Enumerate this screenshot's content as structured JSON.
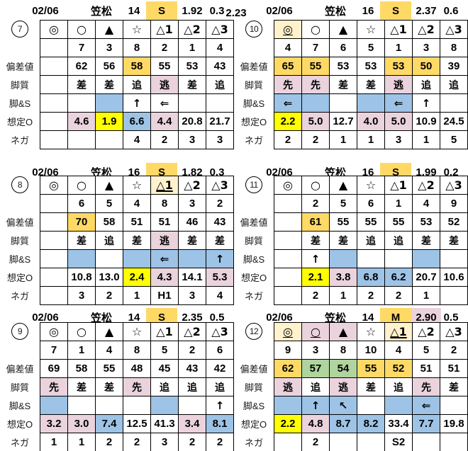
{
  "palette": {
    "y": "#FFD966",
    "ly": "#FFF2CC",
    "p": "#EAD3DD",
    "b": "#9DC3E6",
    "g": "#AFD49E",
    "Y": "#FFFF00"
  },
  "row_labels": [
    "偏差値",
    "脚質",
    "脚&S",
    "想定O",
    "ネガ"
  ],
  "blocks": [
    {
      "num": "7",
      "header": {
        "date": "02/06",
        "track": "笠松",
        "count": "14",
        "cls": "S",
        "cls_bg": "y",
        "v1": "1.92",
        "v2": "0.3",
        "v3": "2.23"
      },
      "rows": {
        "symbols": [
          "◎",
          "○",
          "▲",
          "☆",
          "△1",
          "△2",
          "△3"
        ],
        "numbers": [
          "",
          "7",
          "3",
          "8",
          "2",
          "1",
          "4"
        ],
        "hensachi": [
          "",
          "62",
          "56",
          {
            "t": "58",
            "c": "y"
          },
          "55",
          "53",
          "43"
        ],
        "kyakushitsu": [
          "",
          "差",
          "差",
          "追",
          {
            "t": "逃",
            "c": "p"
          },
          "差",
          "追"
        ],
        "ashi_s": [
          "",
          "",
          {
            "t": "",
            "c": "b"
          },
          "↑",
          "⇐",
          "",
          ""
        ],
        "sotei_o": [
          "",
          {
            "t": "4.6",
            "c": "p"
          },
          {
            "t": "1.9",
            "c": "Y"
          },
          {
            "t": "6.6",
            "c": "b"
          },
          {
            "t": "4.4",
            "c": "p"
          },
          "20.8",
          "21.7"
        ],
        "nega": [
          "",
          "",
          "",
          "4",
          "2",
          "3",
          "3"
        ]
      }
    },
    {
      "num": "10",
      "header": {
        "date": "02/06",
        "track": "笠松",
        "count": "16",
        "cls": "S",
        "cls_bg": "y",
        "v1": "2.37",
        "v2": "0.6"
      },
      "rows": {
        "symbols": [
          {
            "t": "◎",
            "c": "ly",
            "u": true
          },
          "○",
          "▲",
          "☆",
          "△1",
          "△2",
          "△3"
        ],
        "numbers": [
          "4",
          "7",
          "6",
          "5",
          "1",
          "3",
          "8"
        ],
        "hensachi": [
          {
            "t": "65",
            "c": "y"
          },
          {
            "t": "55",
            "c": "y"
          },
          "53",
          "53",
          {
            "t": "53",
            "c": "y"
          },
          {
            "t": "50",
            "c": "y"
          },
          "39"
        ],
        "kyakushitsu": [
          {
            "t": "先",
            "c": "p"
          },
          {
            "t": "先",
            "c": "p"
          },
          "差",
          "差",
          {
            "t": "逃",
            "c": "p"
          },
          "追",
          "追"
        ],
        "ashi_s": [
          {
            "t": "⇐",
            "c": "b"
          },
          {
            "t": "",
            "c": "b"
          },
          "",
          {
            "t": "",
            "c": "b"
          },
          {
            "t": "⇐",
            "c": "b"
          },
          "↑",
          ""
        ],
        "sotei_o": [
          {
            "t": "2.2",
            "c": "Y"
          },
          {
            "t": "5.0",
            "c": "p"
          },
          "12.7",
          {
            "t": "4.0",
            "c": "p"
          },
          {
            "t": "5.0",
            "c": "p"
          },
          "10.9",
          "24.5"
        ],
        "nega": [
          "2",
          "2",
          "1",
          "1",
          "3",
          "1",
          "5"
        ]
      }
    },
    {
      "num": "8",
      "header": {
        "date": "02/06",
        "track": "笠松",
        "count": "16",
        "cls": "S",
        "cls_bg": "y",
        "v1": "1.82",
        "v2": "0.3"
      },
      "rows": {
        "symbols": [
          "◎",
          "○",
          "▲",
          "☆",
          {
            "t": "△1",
            "c": "ly",
            "u": true,
            "b": true
          },
          "△2",
          "△3"
        ],
        "numbers": [
          "",
          "6",
          "5",
          "4",
          "8",
          "3",
          "2"
        ],
        "hensachi": [
          "",
          {
            "t": "70",
            "c": "y"
          },
          "58",
          "51",
          "51",
          "46",
          "43"
        ],
        "kyakushitsu": [
          "",
          "差",
          "追",
          "差",
          {
            "t": "逃",
            "c": "p"
          },
          "差",
          "差"
        ],
        "ashi_s": [
          "",
          {
            "t": "",
            "c": "b"
          },
          "",
          {
            "t": "",
            "c": "b"
          },
          {
            "t": "⇐",
            "c": "b"
          },
          {
            "t": "",
            "c": "b"
          },
          {
            "t": "↑",
            "c": "b"
          }
        ],
        "sotei_o": [
          "",
          "10.8",
          "13.0",
          {
            "t": "2.4",
            "c": "Y"
          },
          {
            "t": "4.3",
            "c": "p"
          },
          "14.1",
          {
            "t": "5.3",
            "c": "p"
          }
        ],
        "nega": [
          "",
          "3",
          "2",
          "1",
          "H1",
          "3",
          "4"
        ]
      }
    },
    {
      "num": "11",
      "header": {
        "date": "02/06",
        "track": "笠松",
        "count": "16",
        "cls": "S",
        "cls_bg": "y",
        "v1": "1.99",
        "v2": "0.2"
      },
      "rows": {
        "symbols": [
          "◎",
          "○",
          "▲",
          "☆",
          "△1",
          "△2",
          "△3"
        ],
        "numbers": [
          "",
          "2",
          "5",
          "6",
          "1",
          "4",
          "9"
        ],
        "hensachi": [
          "",
          {
            "t": "61",
            "c": "y"
          },
          "55",
          "55",
          "55",
          "53",
          "52"
        ],
        "kyakushitsu": [
          "",
          "差",
          "差",
          "追",
          "追",
          "差",
          "差"
        ],
        "ashi_s": [
          "",
          "↑",
          {
            "t": "",
            "c": "b"
          },
          "",
          "",
          {
            "t": "",
            "c": "b"
          },
          ""
        ],
        "sotei_o": [
          "",
          {
            "t": "2.1",
            "c": "Y"
          },
          {
            "t": "3.8",
            "c": "p"
          },
          {
            "t": "6.8",
            "c": "b"
          },
          {
            "t": "6.2",
            "c": "b"
          },
          "20.7",
          "10.6"
        ],
        "nega": [
          "",
          "2",
          "1",
          "2",
          "2",
          "1",
          ""
        ]
      }
    },
    {
      "num": "9",
      "header": {
        "date": "02/06",
        "track": "笠松",
        "count": "14",
        "cls": "S",
        "cls_bg": "y",
        "v1": "2.35",
        "v2": "0.5"
      },
      "rows": {
        "symbols": [
          "◎",
          "○",
          "▲",
          "☆",
          "△1",
          "△2",
          "△3"
        ],
        "numbers": [
          "7",
          "1",
          "4",
          "8",
          "5",
          "2",
          "6"
        ],
        "hensachi": [
          "69",
          "58",
          "55",
          "48",
          "45",
          "43",
          "42"
        ],
        "kyakushitsu": [
          {
            "t": "先",
            "c": "p"
          },
          "差",
          "差",
          {
            "t": "先",
            "c": "p"
          },
          "追",
          "追",
          "追"
        ],
        "ashi_s": [
          {
            "t": "",
            "c": "b"
          },
          "",
          "",
          "",
          {
            "t": "",
            "c": "b"
          },
          "",
          "↑"
        ],
        "sotei_o": [
          {
            "t": "3.2",
            "c": "p"
          },
          {
            "t": "3.0",
            "c": "p"
          },
          {
            "t": "7.4",
            "c": "b"
          },
          "12.5",
          "41.3",
          {
            "t": "3.4",
            "c": "p"
          },
          {
            "t": "8.1",
            "c": "b"
          }
        ],
        "nega": [
          "1",
          "1",
          "2",
          "2",
          "3",
          "2",
          "2"
        ]
      }
    },
    {
      "num": "12",
      "header": {
        "date": "02/06",
        "track": "笠松",
        "count": "14",
        "cls": "M",
        "cls_bg": "y",
        "v1": "2.90",
        "v1_bg": "p",
        "v2": "0.5"
      },
      "rows": {
        "symbols": [
          {
            "t": "◎",
            "c": "ly",
            "u": true
          },
          {
            "t": "○",
            "c": "p",
            "u": true
          },
          {
            "t": "▲",
            "c": "p"
          },
          "☆",
          {
            "t": "△1",
            "c": "ly",
            "u": true,
            "b": true
          },
          "△2",
          "△3"
        ],
        "numbers": [
          "9",
          "3",
          "8",
          "10",
          "4",
          "5",
          "2"
        ],
        "hensachi": [
          {
            "t": "62",
            "c": "y"
          },
          {
            "t": "57",
            "c": "g"
          },
          {
            "t": "54",
            "c": "g"
          },
          {
            "t": "55",
            "c": "y"
          },
          {
            "t": "52",
            "c": "y"
          },
          "51",
          "51"
        ],
        "kyakushitsu": [
          {
            "t": "逃",
            "c": "p"
          },
          "追",
          {
            "t": "逃",
            "c": "p"
          },
          "差",
          "追",
          {
            "t": "先",
            "c": "p"
          },
          "差"
        ],
        "ashi_s": [
          {
            "t": "",
            "c": "b"
          },
          {
            "t": "↑",
            "c": "b"
          },
          {
            "t": "↖",
            "c": "b"
          },
          "",
          {
            "t": "",
            "c": "b"
          },
          {
            "t": "⇐",
            "c": "b"
          },
          ""
        ],
        "sotei_o": [
          {
            "t": "2.2",
            "c": "Y"
          },
          {
            "t": "4.8",
            "c": "p"
          },
          {
            "t": "8.7",
            "c": "b"
          },
          {
            "t": "8.2",
            "c": "b"
          },
          "33.4",
          {
            "t": "7.7",
            "c": "b"
          },
          "19.8"
        ],
        "nega": [
          "",
          "2",
          "",
          "",
          "S2",
          "",
          ""
        ]
      }
    }
  ]
}
